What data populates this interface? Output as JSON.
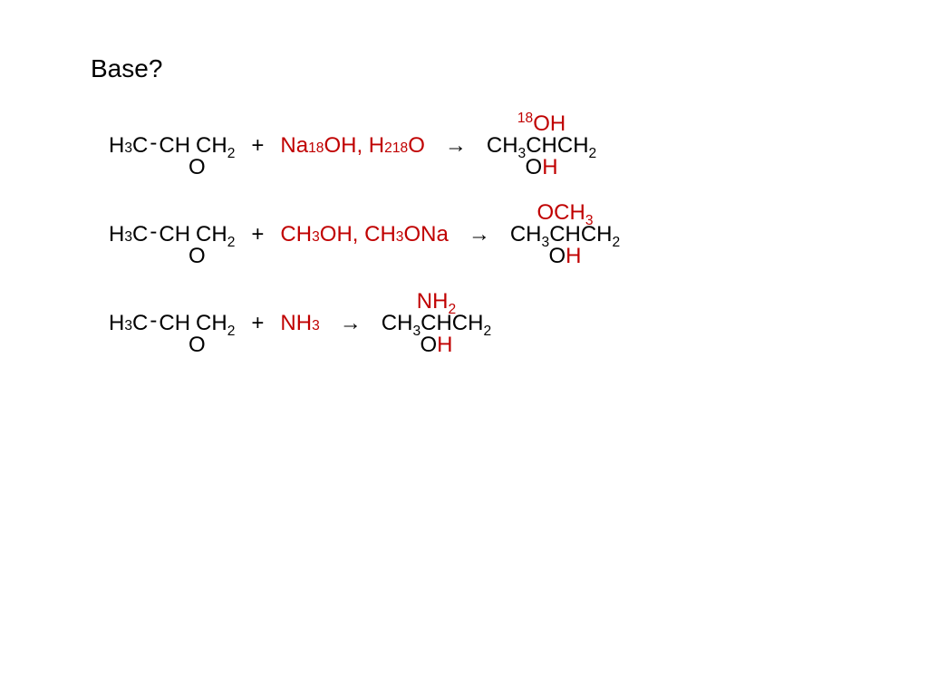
{
  "title": "Base?",
  "colors": {
    "text": "#000000",
    "accent": "#c00000",
    "background": "#ffffff"
  },
  "typography": {
    "title_fontsize": 28,
    "body_fontsize": 24,
    "family": "Arial"
  },
  "reactions": [
    {
      "reactant": {
        "prefix": "H",
        "prefix_sub": "3",
        "c": "C",
        "ch": "CH",
        "ch2": "CH",
        "ch2_sub": "2",
        "bridge": "O"
      },
      "plus": "+",
      "reagents": [
        {
          "parts": [
            {
              "t": "Na",
              "sup": "",
              "sub": ""
            },
            {
              "t": "",
              "sup": "18",
              "sub": ""
            },
            {
              "t": "OH",
              "sup": "",
              "sub": ""
            }
          ]
        },
        {
          "sep": ", "
        },
        {
          "parts": [
            {
              "t": "H",
              "sup": "",
              "sub": "2"
            },
            {
              "t": "",
              "sup": "18",
              "sub": ""
            },
            {
              "t": "O",
              "sup": "",
              "sub": ""
            }
          ]
        }
      ],
      "arrow": "→",
      "product": {
        "body": [
          {
            "t": "CH",
            "sub": "3"
          },
          {
            "t": "CHCH",
            "sub": "2"
          }
        ],
        "above": [
          {
            "t": "",
            "sup": "18",
            "sub": ""
          },
          {
            "t": "OH",
            "sup": "",
            "sub": ""
          }
        ],
        "below": {
          "o": "O",
          "h": "H"
        }
      }
    },
    {
      "reactant": {
        "prefix": "H",
        "prefix_sub": "3",
        "c": "C",
        "ch": "CH",
        "ch2": "CH",
        "ch2_sub": "2",
        "bridge": "O"
      },
      "plus": "+",
      "reagents": [
        {
          "parts": [
            {
              "t": "CH",
              "sub": "3"
            },
            {
              "t": "OH",
              "sub": ""
            }
          ]
        },
        {
          "sep": ", "
        },
        {
          "parts": [
            {
              "t": "CH",
              "sub": "3"
            },
            {
              "t": "ONa",
              "sub": ""
            }
          ]
        }
      ],
      "arrow": "→",
      "product": {
        "body": [
          {
            "t": "CH",
            "sub": "3"
          },
          {
            "t": "CHCH",
            "sub": "2"
          }
        ],
        "above": [
          {
            "t": "OCH",
            "sub": "3"
          }
        ],
        "below": {
          "o": "O",
          "h": "H"
        }
      }
    },
    {
      "reactant": {
        "prefix": "H",
        "prefix_sub": "3",
        "c": "C",
        "ch": "CH",
        "ch2": "CH",
        "ch2_sub": "2",
        "bridge": "O"
      },
      "plus": "+",
      "reagents": [
        {
          "parts": [
            {
              "t": "NH",
              "sub": "3"
            }
          ]
        }
      ],
      "arrow": "→",
      "product": {
        "body": [
          {
            "t": "CH",
            "sub": "3"
          },
          {
            "t": "CHCH",
            "sub": "2"
          }
        ],
        "above": [
          {
            "t": "NH",
            "sub": "2"
          }
        ],
        "below": {
          "o": "O",
          "h": "H"
        }
      }
    }
  ]
}
